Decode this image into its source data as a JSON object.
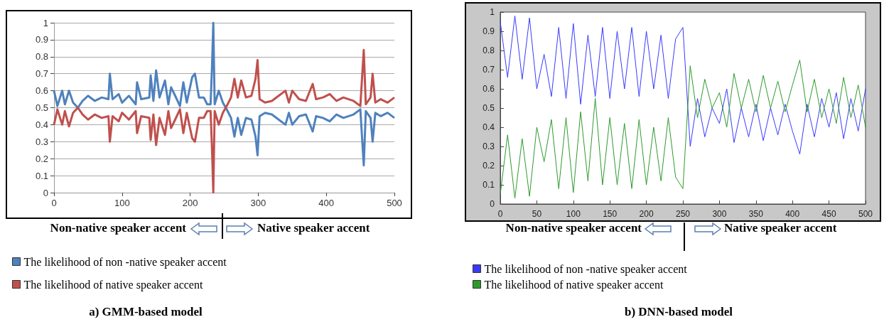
{
  "chart_data": [
    {
      "type": "line",
      "title": "a) GMM-based model",
      "legend": "bottom left",
      "grid": "y",
      "marker": "none",
      "line_style": "solid",
      "xlim": [
        0,
        500
      ],
      "ylim": [
        0,
        1
      ],
      "xticks": [
        0,
        100,
        200,
        300,
        400,
        500
      ],
      "yticks": [
        0,
        0.1,
        0.2,
        0.3,
        0.4,
        0.5,
        0.6,
        0.7,
        0.8,
        0.9,
        1
      ],
      "annotations": [
        "Non-native speaker accent",
        "Native speaker accent"
      ],
      "x": [
        0,
        5,
        12,
        16,
        22,
        28,
        35,
        42,
        50,
        60,
        70,
        80,
        82,
        86,
        95,
        100,
        110,
        120,
        122,
        128,
        140,
        142,
        146,
        150,
        155,
        163,
        168,
        172,
        178,
        185,
        190,
        195,
        203,
        207,
        213,
        220,
        225,
        230,
        232,
        234,
        236,
        242,
        248,
        255,
        260,
        265,
        270,
        275,
        282,
        290,
        296,
        299,
        302,
        310,
        320,
        330,
        340,
        345,
        350,
        360,
        370,
        380,
        385,
        395,
        405,
        415,
        425,
        440,
        450,
        455,
        458,
        465,
        468,
        472,
        480,
        490,
        500
      ],
      "series": [
        {
          "name": "The likelihood of non -native speaker accent",
          "color": "#4f81bd",
          "values": [
            0.6,
            0.51,
            0.6,
            0.52,
            0.6,
            0.53,
            0.5,
            0.54,
            0.57,
            0.54,
            0.56,
            0.55,
            0.7,
            0.55,
            0.58,
            0.53,
            0.57,
            0.52,
            0.65,
            0.55,
            0.56,
            0.69,
            0.54,
            0.72,
            0.56,
            0.66,
            0.52,
            0.62,
            0.57,
            0.51,
            0.65,
            0.53,
            0.68,
            0.7,
            0.56,
            0.56,
            0.52,
            0.52,
            0.73,
            1.0,
            0.52,
            0.6,
            0.53,
            0.48,
            0.44,
            0.33,
            0.44,
            0.34,
            0.44,
            0.43,
            0.33,
            0.22,
            0.45,
            0.47,
            0.46,
            0.43,
            0.4,
            0.47,
            0.4,
            0.45,
            0.46,
            0.36,
            0.45,
            0.44,
            0.42,
            0.46,
            0.44,
            0.46,
            0.49,
            0.16,
            0.48,
            0.44,
            0.3,
            0.47,
            0.45,
            0.47,
            0.44
          ]
        },
        {
          "name": "The likelihood of native speaker accent",
          "color": "#c0504d",
          "values": [
            0.4,
            0.49,
            0.4,
            0.48,
            0.39,
            0.47,
            0.5,
            0.46,
            0.43,
            0.46,
            0.44,
            0.45,
            0.3,
            0.45,
            0.42,
            0.47,
            0.43,
            0.48,
            0.35,
            0.45,
            0.44,
            0.31,
            0.46,
            0.28,
            0.44,
            0.34,
            0.48,
            0.38,
            0.43,
            0.49,
            0.35,
            0.47,
            0.32,
            0.3,
            0.44,
            0.44,
            0.48,
            0.48,
            0.27,
            0.0,
            0.48,
            0.4,
            0.47,
            0.52,
            0.56,
            0.67,
            0.56,
            0.66,
            0.56,
            0.57,
            0.67,
            0.78,
            0.55,
            0.53,
            0.54,
            0.57,
            0.6,
            0.53,
            0.6,
            0.55,
            0.54,
            0.64,
            0.55,
            0.56,
            0.58,
            0.54,
            0.56,
            0.54,
            0.51,
            0.84,
            0.52,
            0.56,
            0.7,
            0.53,
            0.55,
            0.53,
            0.56
          ]
        }
      ]
    },
    {
      "type": "line",
      "title": "b) DNN-based model",
      "legend": "bottom left",
      "grid": false,
      "marker": "none",
      "line_style": "solid",
      "xlim": [
        0,
        500
      ],
      "ylim": [
        0,
        1
      ],
      "xticks": [
        0,
        50,
        100,
        150,
        200,
        250,
        300,
        350,
        400,
        450,
        500
      ],
      "yticks": [
        0,
        0.1,
        0.2,
        0.3,
        0.4,
        0.5,
        0.6,
        0.7,
        0.8,
        0.9,
        1
      ],
      "annotations": [
        "Non-native speaker accent",
        "Native speaker accent"
      ],
      "x": [
        0,
        10,
        20,
        30,
        40,
        50,
        60,
        70,
        80,
        90,
        100,
        110,
        120,
        130,
        140,
        150,
        160,
        170,
        180,
        190,
        200,
        210,
        220,
        230,
        240,
        250,
        260,
        270,
        280,
        290,
        300,
        310,
        320,
        330,
        340,
        350,
        360,
        370,
        380,
        390,
        400,
        410,
        420,
        430,
        440,
        450,
        460,
        470,
        480,
        490,
        500
      ],
      "series": [
        {
          "name": "The likelihood of non -native speaker accent",
          "color": "#3a3aff",
          "values": [
            0.95,
            0.66,
            0.98,
            0.65,
            0.97,
            0.6,
            0.78,
            0.56,
            0.92,
            0.55,
            0.94,
            0.52,
            0.88,
            0.56,
            0.92,
            0.55,
            0.9,
            0.6,
            0.92,
            0.56,
            0.9,
            0.6,
            0.88,
            0.55,
            0.86,
            0.92,
            0.3,
            0.55,
            0.35,
            0.5,
            0.42,
            0.6,
            0.32,
            0.5,
            0.35,
            0.52,
            0.33,
            0.5,
            0.36,
            0.52,
            0.38,
            0.26,
            0.52,
            0.35,
            0.55,
            0.4,
            0.58,
            0.34,
            0.55,
            0.38,
            0.6
          ]
        },
        {
          "name": "The likelihood of native speaker accent",
          "color": "#2e9a2e",
          "values": [
            0.05,
            0.36,
            0.03,
            0.34,
            0.04,
            0.4,
            0.22,
            0.44,
            0.08,
            0.45,
            0.06,
            0.48,
            0.12,
            0.55,
            0.1,
            0.45,
            0.1,
            0.42,
            0.08,
            0.44,
            0.1,
            0.4,
            0.12,
            0.45,
            0.14,
            0.08,
            0.72,
            0.45,
            0.65,
            0.5,
            0.58,
            0.4,
            0.68,
            0.5,
            0.65,
            0.48,
            0.67,
            0.5,
            0.64,
            0.48,
            0.62,
            0.75,
            0.48,
            0.65,
            0.45,
            0.6,
            0.42,
            0.66,
            0.45,
            0.62,
            0.4
          ]
        }
      ]
    }
  ]
}
